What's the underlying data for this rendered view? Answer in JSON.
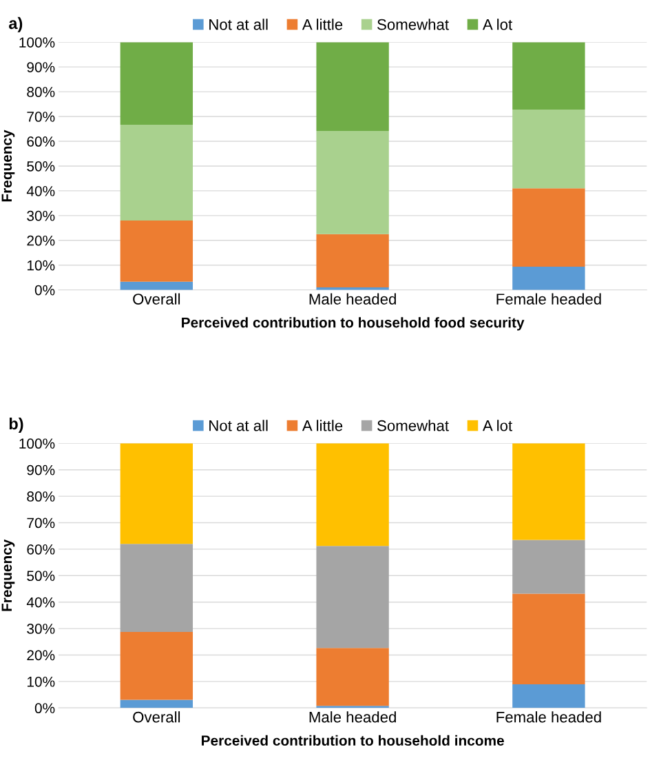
{
  "chart_data": [
    {
      "type": "bar",
      "stacked": true,
      "annotations": [
        "a)"
      ],
      "xlabel": "Perceived contribution to household food security",
      "ylabel": "Frequency",
      "categories": [
        "Overall",
        "Male headed",
        "Female headed"
      ],
      "series": [
        {
          "name": "Not at all",
          "color": "#5b9bd5",
          "values": [
            3.3,
            1.0,
            9.4
          ]
        },
        {
          "name": "A little",
          "color": "#ed7d31",
          "values": [
            24.7,
            21.5,
            31.6
          ]
        },
        {
          "name": "Somewhat",
          "color": "#a9d18e",
          "values": [
            38.7,
            41.7,
            31.8
          ]
        },
        {
          "name": "A lot",
          "color": "#70ad47",
          "values": [
            33.3,
            35.8,
            27.2
          ]
        }
      ],
      "ylim": [
        0,
        100
      ],
      "yticks": [
        {
          "value": 0,
          "label": "0%"
        },
        {
          "value": 10,
          "label": "10%"
        },
        {
          "value": 20,
          "label": "20%"
        },
        {
          "value": 30,
          "label": "30%"
        },
        {
          "value": 40,
          "label": "40%"
        },
        {
          "value": 50,
          "label": "50%"
        },
        {
          "value": 60,
          "label": "60%"
        },
        {
          "value": 70,
          "label": "70%"
        },
        {
          "value": 80,
          "label": "80%"
        },
        {
          "value": 90,
          "label": "90%"
        },
        {
          "value": 100,
          "label": "100%"
        }
      ],
      "grid": "y",
      "legend": "top"
    },
    {
      "type": "bar",
      "stacked": true,
      "annotations": [
        "b)"
      ],
      "xlabel": "Perceived contribution to household income",
      "ylabel": "Frequency",
      "categories": [
        "Overall",
        "Male headed",
        "Female headed"
      ],
      "series": [
        {
          "name": "Not at all",
          "color": "#5b9bd5",
          "values": [
            3.1,
            0.8,
            8.9
          ]
        },
        {
          "name": "A little",
          "color": "#ed7d31",
          "values": [
            25.6,
            21.9,
            34.3
          ]
        },
        {
          "name": "Somewhat",
          "color": "#a5a5a5",
          "values": [
            33.3,
            38.5,
            20.3
          ]
        },
        {
          "name": "A lot",
          "color": "#ffc000",
          "values": [
            38.0,
            38.8,
            36.5
          ]
        }
      ],
      "ylim": [
        0,
        100
      ],
      "yticks": [
        {
          "value": 0,
          "label": "0%"
        },
        {
          "value": 10,
          "label": "10%"
        },
        {
          "value": 20,
          "label": "20%"
        },
        {
          "value": 30,
          "label": "30%"
        },
        {
          "value": 40,
          "label": "40%"
        },
        {
          "value": 50,
          "label": "50%"
        },
        {
          "value": 60,
          "label": "60%"
        },
        {
          "value": 70,
          "label": "70%"
        },
        {
          "value": 80,
          "label": "80%"
        },
        {
          "value": 90,
          "label": "90%"
        },
        {
          "value": 100,
          "label": "100%"
        }
      ],
      "grid": "y",
      "legend": "top"
    }
  ]
}
